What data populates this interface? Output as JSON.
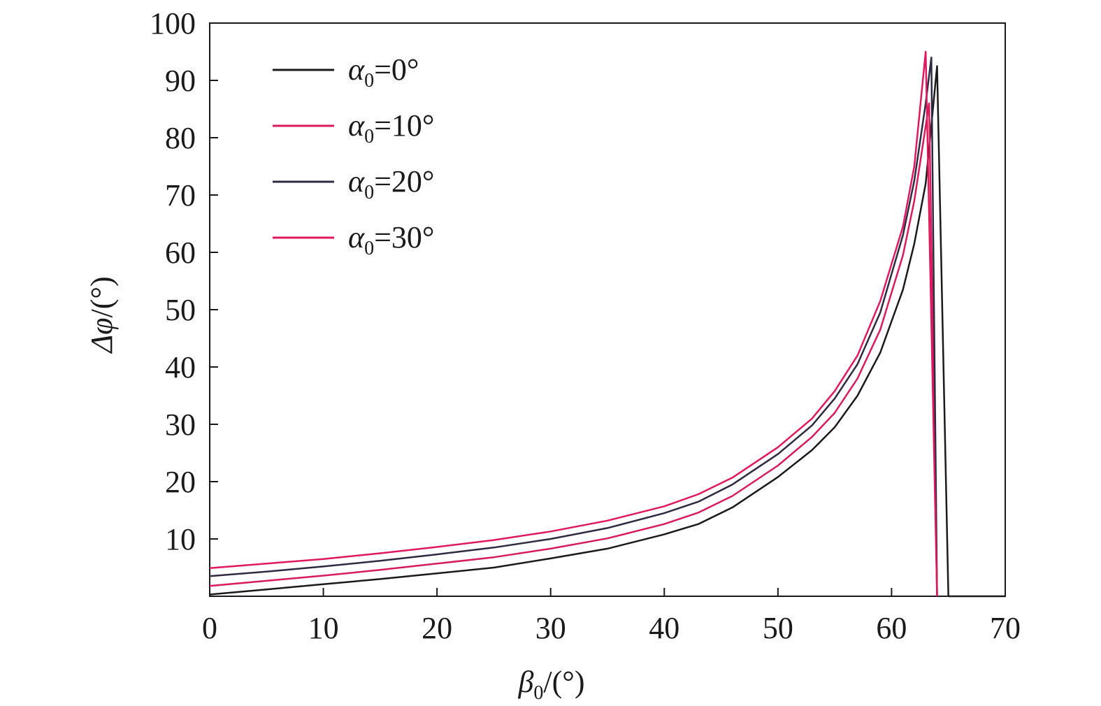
{
  "chart_data": {
    "type": "line",
    "xlabel": {
      "symbol": "β",
      "subscript": "0",
      "rest": "/(°)"
    },
    "ylabel": {
      "symbol": "Δφ",
      "rest": "/(°)"
    },
    "xlim": [
      0,
      70
    ],
    "ylim": [
      0,
      100
    ],
    "x_ticks": [
      0,
      10,
      20,
      30,
      40,
      50,
      60,
      70
    ],
    "y_ticks": [
      10,
      20,
      30,
      40,
      50,
      60,
      70,
      80,
      90,
      100
    ],
    "grid": false,
    "legend_position": "top-left",
    "series": [
      {
        "name": "α0=0°",
        "legend": {
          "symbol": "α",
          "subscript": "0",
          "rest": "=0°"
        },
        "color": "#1a1a1a",
        "x": [
          0,
          5,
          10,
          15,
          20,
          25,
          30,
          35,
          40,
          43,
          46,
          50,
          53,
          55,
          57,
          59,
          61,
          62,
          63,
          64,
          65
        ],
        "y": [
          0.3,
          1.2,
          2.1,
          3.0,
          4.0,
          5.0,
          6.6,
          8.3,
          10.8,
          12.6,
          15.5,
          20.8,
          25.5,
          29.5,
          35.0,
          42.5,
          53.5,
          61.5,
          72.0,
          92.5,
          0
        ]
      },
      {
        "name": "α0=10°",
        "legend": {
          "symbol": "α",
          "subscript": "0",
          "rest": "=10°"
        },
        "color": "#d81b5a",
        "x": [
          0,
          5,
          10,
          15,
          20,
          25,
          30,
          35,
          40,
          43,
          46,
          50,
          53,
          55,
          57,
          59,
          61,
          62,
          63,
          63.3,
          64
        ],
        "y": [
          1.8,
          2.7,
          3.6,
          4.6,
          5.7,
          6.8,
          8.3,
          10.1,
          12.6,
          14.6,
          17.5,
          22.8,
          27.8,
          32.0,
          38.0,
          46.5,
          59.5,
          69.0,
          82.0,
          86.0,
          0
        ]
      },
      {
        "name": "α0=20°",
        "legend": {
          "symbol": "α",
          "subscript": "0",
          "rest": "=20°"
        },
        "color": "#2e2a44",
        "x": [
          0,
          5,
          10,
          15,
          20,
          25,
          30,
          35,
          40,
          43,
          46,
          50,
          53,
          55,
          57,
          59,
          61,
          62,
          63,
          63.5,
          64
        ],
        "y": [
          3.5,
          4.3,
          5.2,
          6.2,
          7.3,
          8.5,
          10.0,
          11.9,
          14.5,
          16.5,
          19.5,
          24.8,
          29.8,
          34.5,
          40.5,
          49.5,
          63.0,
          72.5,
          86.0,
          94.0,
          0
        ]
      },
      {
        "name": "α0=30°",
        "legend": {
          "symbol": "α",
          "subscript": "0",
          "rest": "=30°"
        },
        "color": "#e0185e",
        "x": [
          0,
          5,
          10,
          15,
          20,
          25,
          30,
          35,
          40,
          43,
          46,
          50,
          53,
          55,
          57,
          59,
          61,
          62,
          63,
          64
        ],
        "y": [
          4.9,
          5.7,
          6.5,
          7.5,
          8.6,
          9.8,
          11.3,
          13.2,
          15.7,
          17.8,
          20.7,
          26.0,
          31.0,
          35.8,
          42.0,
          51.5,
          64.5,
          75.0,
          95.0,
          0
        ]
      }
    ]
  }
}
